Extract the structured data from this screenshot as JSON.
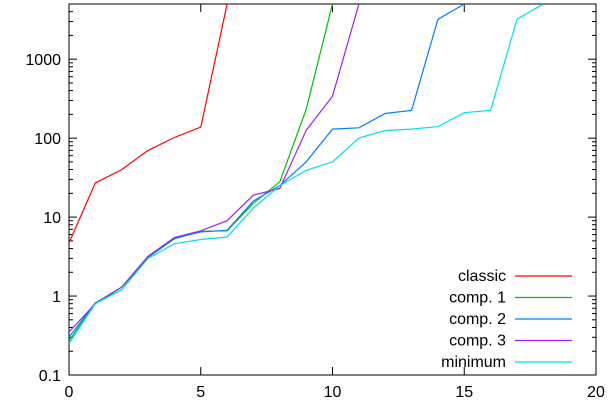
{
  "chart_data": {
    "type": "line",
    "title": "",
    "xlabel": "",
    "ylabel": "",
    "xlim": [
      0,
      20
    ],
    "ylim": [
      0.1,
      5000
    ],
    "yscale": "log",
    "grid": false,
    "legend_position": "bottom-right",
    "x_ticks": [
      0,
      5,
      10,
      15,
      20
    ],
    "x_tick_labels": [
      "0",
      "5",
      "10",
      "15",
      "20"
    ],
    "y_ticks": [
      0.1,
      1,
      10,
      100,
      1000
    ],
    "y_tick_labels": [
      "0.1",
      "1",
      "10",
      "100",
      "1000"
    ],
    "series": [
      {
        "name": "classic",
        "color": "#ff0000",
        "x": [
          0,
          1,
          2,
          3,
          4,
          5,
          6
        ],
        "y": [
          4.7,
          27,
          40,
          70,
          102,
          138,
          5000
        ]
      },
      {
        "name": "comp. 1",
        "color": "#00c000",
        "x": [
          0,
          1,
          2,
          3,
          4,
          5,
          6,
          7,
          8,
          9,
          10
        ],
        "y": [
          0.27,
          0.82,
          1.3,
          3.1,
          5.3,
          6.6,
          6.7,
          15,
          28,
          230,
          5000
        ]
      },
      {
        "name": "comp. 2",
        "color": "#0080ff",
        "x": [
          0,
          1,
          2,
          3,
          4,
          5,
          6,
          7,
          8,
          9,
          10,
          11,
          12,
          13,
          14,
          15
        ],
        "y": [
          0.3,
          0.82,
          1.2,
          3.1,
          5.4,
          6.5,
          6.8,
          16,
          25,
          50,
          130,
          135,
          205,
          225,
          3200,
          5000
        ]
      },
      {
        "name": "comp. 3",
        "color": "#a020f0",
        "x": [
          0,
          1,
          2,
          3,
          4,
          5,
          6,
          7,
          8,
          9,
          10,
          11
        ],
        "y": [
          0.35,
          0.8,
          1.3,
          3.2,
          5.5,
          6.7,
          9,
          19,
          23,
          125,
          340,
          5000
        ]
      },
      {
        "name": "minimum",
        "color": "#00e0e0",
        "x": [
          0,
          1,
          2,
          3,
          4,
          5,
          6,
          7,
          8,
          9,
          10,
          11,
          12,
          13,
          14,
          15,
          16,
          17,
          18
        ],
        "y": [
          0.25,
          0.8,
          1.2,
          3.0,
          4.6,
          5.2,
          5.6,
          13,
          25,
          39,
          50,
          100,
          125,
          130,
          140,
          210,
          225,
          3200,
          5000
        ]
      }
    ]
  }
}
